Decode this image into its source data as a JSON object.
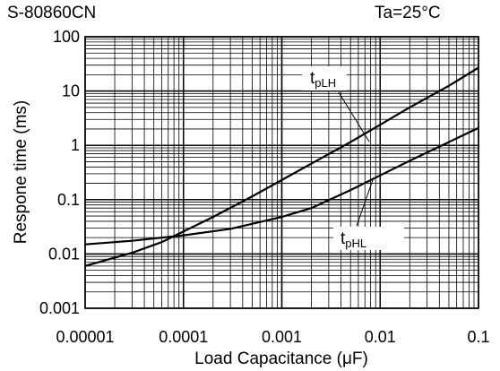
{
  "header": {
    "model": "S-80860CN",
    "condition": "Ta=25°C"
  },
  "chart_data": {
    "type": "line",
    "xlabel": "Load Capacitance (μF)",
    "ylabel": "Respone time (ms)",
    "xscale": "log",
    "yscale": "log",
    "xlim": [
      1e-05,
      0.1
    ],
    "ylim": [
      0.001,
      100
    ],
    "x_ticks": [
      {
        "value": 1e-05,
        "label": "0.00001"
      },
      {
        "value": 0.0001,
        "label": "0.0001"
      },
      {
        "value": 0.001,
        "label": "0.001"
      },
      {
        "value": 0.01,
        "label": "0.01"
      },
      {
        "value": 0.1,
        "label": "0.1"
      }
    ],
    "y_ticks": [
      {
        "value": 0.001,
        "label": "0.001"
      },
      {
        "value": 0.01,
        "label": "0.01"
      },
      {
        "value": 0.1,
        "label": "0.1"
      },
      {
        "value": 1,
        "label": "1"
      },
      {
        "value": 10,
        "label": "10"
      },
      {
        "value": 100,
        "label": "100"
      }
    ],
    "grid": true,
    "series": [
      {
        "name": "tpLH",
        "label_main": "t",
        "label_sub": "pLH",
        "points": [
          [
            1e-05,
            0.006
          ],
          [
            3e-05,
            0.0105
          ],
          [
            6e-05,
            0.0165
          ],
          [
            0.0001,
            0.026
          ],
          [
            0.0002,
            0.048
          ],
          [
            0.0005,
            0.115
          ],
          [
            0.001,
            0.23
          ],
          [
            0.002,
            0.46
          ],
          [
            0.005,
            1.15
          ],
          [
            0.01,
            2.4
          ],
          [
            0.02,
            5.0
          ],
          [
            0.05,
            12.5
          ],
          [
            0.1,
            27
          ]
        ]
      },
      {
        "name": "tpHL",
        "label_main": "t",
        "label_sub": "pHL",
        "points": [
          [
            1e-05,
            0.015
          ],
          [
            3e-05,
            0.0175
          ],
          [
            0.0001,
            0.022
          ],
          [
            0.0003,
            0.029
          ],
          [
            0.001,
            0.048
          ],
          [
            0.002,
            0.07
          ],
          [
            0.005,
            0.15
          ],
          [
            0.01,
            0.28
          ],
          [
            0.02,
            0.52
          ],
          [
            0.05,
            1.15
          ],
          [
            0.1,
            2.1
          ]
        ]
      }
    ]
  }
}
